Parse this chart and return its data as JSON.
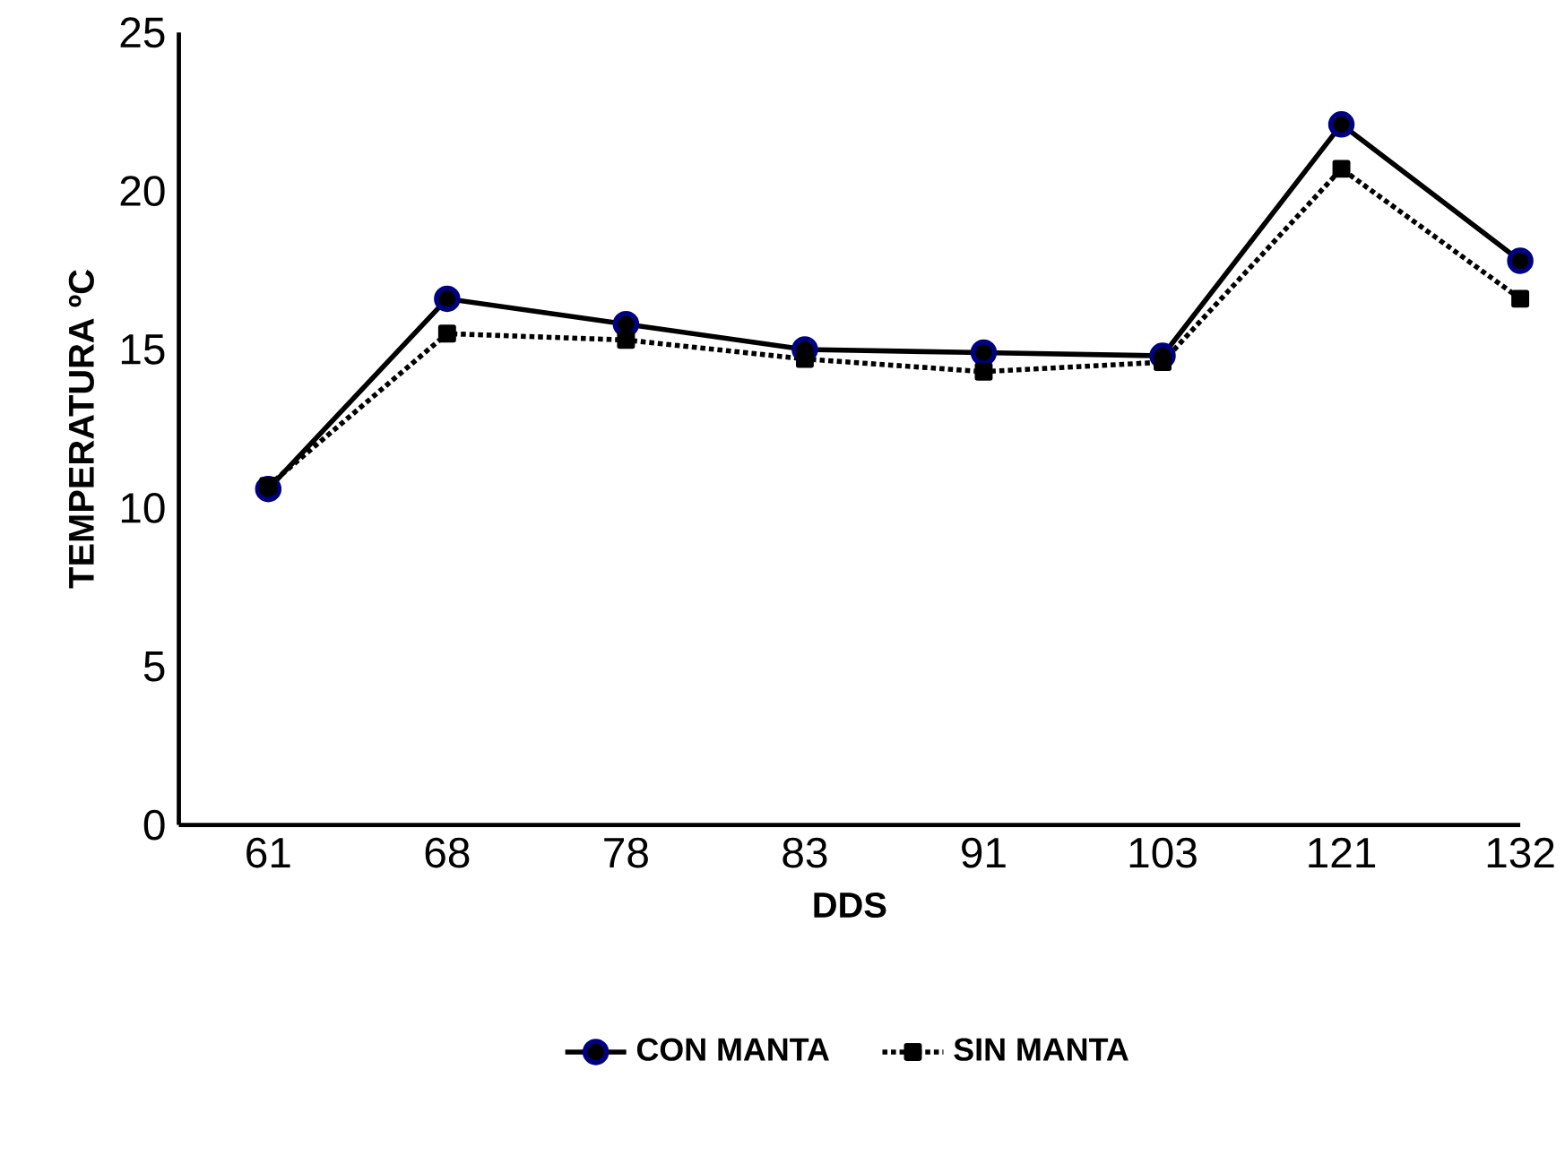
{
  "chart_data": {
    "type": "line",
    "xlabel": "DDS",
    "ylabel": "TEMPERATURA  ºC",
    "categories": [
      "61",
      "68",
      "78",
      "83",
      "91",
      "103",
      "121",
      "132"
    ],
    "ylim": [
      0,
      25
    ],
    "yticks": [
      0,
      5,
      10,
      15,
      20,
      25
    ],
    "grid": false,
    "legend": "bottom",
    "series": [
      {
        "name": "CON MANTA",
        "color": "#000000",
        "marker": "circle",
        "line_style": "solid",
        "values": [
          10.6,
          16.6,
          15.8,
          15.0,
          14.9,
          14.8,
          22.1,
          17.8
        ]
      },
      {
        "name": "SIN MANTA",
        "color": "#000000",
        "marker": "square",
        "line_style": "dotted",
        "values": [
          10.7,
          15.5,
          15.3,
          14.7,
          14.3,
          14.6,
          20.7,
          16.6
        ]
      }
    ]
  }
}
